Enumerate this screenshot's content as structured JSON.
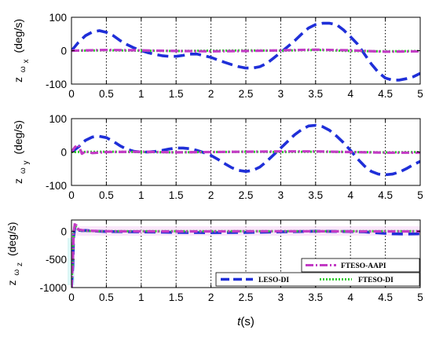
{
  "xlabel_var": "t",
  "xlabel_unit": "(s)",
  "colors": {
    "FTESO-AAPI": "#c23bc4",
    "LESO-DI": "#1f2fd8",
    "FTESO-DI": "#33cc33"
  },
  "legend": {
    "box1": [
      "FTESO-AAPI"
    ],
    "box2": [
      "LESO-DI",
      "FTESO-DI"
    ]
  },
  "chart_data": [
    {
      "type": "line",
      "ylabel_main": "z",
      "ylabel_sub": "ω",
      "ylabel_subsub": "x",
      "ylabel_unit": "(deg/s)",
      "xlim": [
        0,
        5
      ],
      "ylim": [
        -100,
        100
      ],
      "xticks": [
        0,
        0.5,
        1,
        1.5,
        2,
        2.5,
        3,
        3.5,
        4,
        4.5,
        5
      ],
      "xtick_labels": [
        "0",
        "0.5",
        "1",
        "1.5",
        "2",
        "2.5",
        "3",
        "3.5",
        "4",
        "4.5",
        "5"
      ],
      "yticks": [
        -100,
        0,
        100
      ],
      "ytick_labels": [
        "-100",
        "0",
        "100"
      ],
      "grid": "x-dotted",
      "series": [
        {
          "name": "LESO-DI",
          "x": [
            0,
            0.1,
            0.2,
            0.3,
            0.4,
            0.5,
            0.6,
            0.7,
            0.8,
            0.9,
            1.0,
            1.1,
            1.2,
            1.3,
            1.4,
            1.5,
            1.6,
            1.7,
            1.8,
            1.9,
            2.0,
            2.1,
            2.2,
            2.3,
            2.4,
            2.5,
            2.6,
            2.7,
            2.8,
            2.9,
            3.0,
            3.1,
            3.2,
            3.3,
            3.4,
            3.5,
            3.6,
            3.7,
            3.8,
            3.9,
            4.0,
            4.1,
            4.2,
            4.3,
            4.4,
            4.5,
            4.6,
            4.7,
            4.8,
            4.9,
            5.0
          ],
          "y": [
            0,
            25,
            45,
            56,
            60,
            55,
            45,
            30,
            18,
            8,
            0,
            -6,
            -11,
            -15,
            -17,
            -17,
            -14,
            -10,
            -10,
            -15,
            -20,
            -28,
            -35,
            -42,
            -48,
            -52,
            -52,
            -48,
            -38,
            -22,
            -5,
            12,
            30,
            50,
            68,
            78,
            82,
            82,
            78,
            62,
            42,
            20,
            -10,
            -40,
            -65,
            -82,
            -88,
            -88,
            -84,
            -78,
            -68
          ]
        },
        {
          "name": "FTESO-DI",
          "x": [
            0,
            0.5,
            1,
            1.5,
            2,
            2.5,
            3,
            3.5,
            4,
            4.5,
            5
          ],
          "y": [
            0,
            1,
            0,
            -1,
            0,
            1,
            0,
            2,
            -1,
            -2,
            -1
          ]
        },
        {
          "name": "FTESO-AAPI",
          "x": [
            0,
            0.5,
            1,
            1.5,
            2,
            2.5,
            3,
            3.5,
            4,
            4.5,
            5
          ],
          "y": [
            0,
            2,
            1,
            -1,
            -2,
            -1,
            1,
            3,
            1,
            -3,
            -2
          ]
        }
      ]
    },
    {
      "type": "line",
      "ylabel_main": "z",
      "ylabel_sub": "ω",
      "ylabel_subsub": "y",
      "ylabel_unit": "(deg/s)",
      "xlim": [
        0,
        5
      ],
      "ylim": [
        -100,
        100
      ],
      "xticks": [
        0,
        0.5,
        1,
        1.5,
        2,
        2.5,
        3,
        3.5,
        4,
        4.5,
        5
      ],
      "xtick_labels": [
        "0",
        "0.5",
        "1",
        "1.5",
        "2",
        "2.5",
        "3",
        "3.5",
        "4",
        "4.5",
        "5"
      ],
      "yticks": [
        -100,
        0,
        100
      ],
      "ytick_labels": [
        "-100",
        "0",
        "100"
      ],
      "grid": "x-dotted",
      "series": [
        {
          "name": "LESO-DI",
          "x": [
            0,
            0.1,
            0.2,
            0.3,
            0.4,
            0.5,
            0.6,
            0.7,
            0.8,
            0.9,
            1.0,
            1.1,
            1.2,
            1.3,
            1.4,
            1.5,
            1.6,
            1.7,
            1.8,
            1.9,
            2.0,
            2.1,
            2.2,
            2.3,
            2.4,
            2.5,
            2.6,
            2.7,
            2.8,
            2.9,
            3.0,
            3.1,
            3.2,
            3.3,
            3.4,
            3.5,
            3.6,
            3.7,
            3.8,
            3.9,
            4.0,
            4.1,
            4.2,
            4.3,
            4.4,
            4.5,
            4.6,
            4.7,
            4.8,
            4.9,
            5.0
          ],
          "y": [
            0,
            15,
            35,
            45,
            47,
            43,
            32,
            18,
            8,
            2,
            0,
            0,
            2,
            5,
            9,
            12,
            12,
            10,
            5,
            -2,
            -10,
            -22,
            -35,
            -47,
            -55,
            -58,
            -55,
            -45,
            -28,
            -8,
            12,
            32,
            52,
            67,
            78,
            80,
            76,
            65,
            48,
            28,
            5,
            -20,
            -42,
            -58,
            -66,
            -68,
            -66,
            -60,
            -50,
            -38,
            -28
          ]
        },
        {
          "name": "FTESO-DI",
          "x": [
            0,
            0.5,
            1,
            1.5,
            2,
            2.5,
            3,
            3.5,
            4,
            4.5,
            5
          ],
          "y": [
            0,
            1,
            0,
            -1,
            0,
            1,
            0,
            1,
            0,
            -1,
            0
          ]
        },
        {
          "name": "FTESO-AAPI",
          "x": [
            0,
            0.05,
            0.1,
            0.15,
            0.2,
            0.3,
            0.5,
            1,
            1.5,
            2,
            2.5,
            3,
            3.5,
            4,
            4.5,
            5
          ],
          "y": [
            0,
            15,
            20,
            -5,
            2,
            -3,
            0,
            1,
            -1,
            0,
            1,
            2,
            2,
            0,
            -2,
            -2
          ]
        }
      ]
    },
    {
      "type": "line",
      "ylabel_main": "z",
      "ylabel_sub": "ω",
      "ylabel_subsub": "z",
      "ylabel_unit": "(deg/s)",
      "xlim": [
        0,
        5
      ],
      "ylim": [
        -1000,
        200
      ],
      "xticks": [
        0,
        0.5,
        1,
        1.5,
        2,
        2.5,
        3,
        3.5,
        4,
        4.5,
        5
      ],
      "xtick_labels": [
        "0",
        "0.5",
        "1",
        "1.5",
        "2",
        "2.5",
        "3",
        "3.5",
        "4",
        "4.5",
        "5"
      ],
      "yticks": [
        -1000,
        -500,
        0
      ],
      "ytick_labels": [
        "-1000",
        "-500",
        "0"
      ],
      "grid": "x-dotted",
      "series": [
        {
          "name": "LESO-DI",
          "x": [
            0,
            0.02,
            0.03,
            0.05,
            0.08,
            0.1,
            0.15,
            0.2,
            0.3,
            0.5,
            1,
            1.5,
            2,
            2.5,
            3,
            3.5,
            4,
            4.2,
            4.4,
            4.6,
            4.8,
            5
          ],
          "y": [
            -1000,
            -600,
            -100,
            80,
            40,
            20,
            10,
            15,
            5,
            -5,
            -10,
            -20,
            -25,
            -20,
            -10,
            0,
            -5,
            -10,
            -30,
            -45,
            -50,
            -45
          ]
        },
        {
          "name": "FTESO-DI",
          "x": [
            0,
            0.02,
            0.03,
            0.05,
            0.1,
            0.2,
            0.5,
            1,
            1.5,
            2,
            2.5,
            3,
            3.5,
            4,
            4.5,
            5
          ],
          "y": [
            -1000,
            -400,
            0,
            100,
            20,
            5,
            0,
            0,
            0,
            0,
            0,
            0,
            0,
            0,
            0,
            0
          ]
        },
        {
          "name": "FTESO-AAPI",
          "x": [
            0,
            0.02,
            0.03,
            0.05,
            0.1,
            0.2,
            0.5,
            1,
            1.5,
            2,
            2.5,
            3,
            3.5,
            4,
            4.5,
            5
          ],
          "y": [
            -1000,
            -500,
            -50,
            150,
            30,
            10,
            0,
            -2,
            -3,
            -2,
            0,
            1,
            0,
            -2,
            -3,
            -2
          ]
        }
      ]
    }
  ]
}
